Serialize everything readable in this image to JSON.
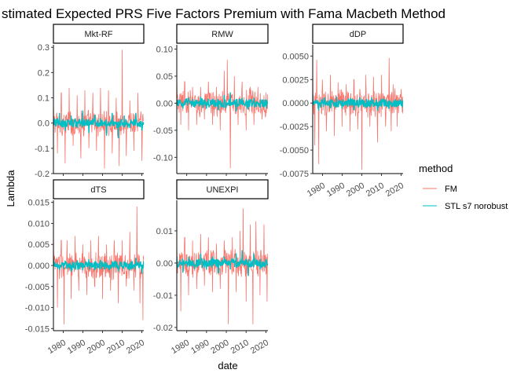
{
  "chart_data": {
    "type": "line",
    "title": "stimated Expected PRS Five Factors Premium with Fama Macbeth Method",
    "xlabel": "date",
    "ylabel": "Lambda",
    "x_range": [
      1975,
      2021
    ],
    "x_ticks": [
      1980,
      1990,
      2000,
      2010,
      2020
    ],
    "grid": false,
    "legend": {
      "title": "method",
      "placement": "right",
      "entries": [
        {
          "name": "FM",
          "color": "#F8766D"
        },
        {
          "name": "STL s7 norobust",
          "color": "#00BFC4"
        }
      ]
    },
    "series_names": [
      "FM",
      "STL s7 norobust"
    ],
    "panels": [
      {
        "name": "Mkt-RF",
        "ylim": [
          -0.2,
          0.31
        ],
        "y_ticks": [
          -0.2,
          -0.1,
          0.0,
          0.1,
          0.2,
          0.3
        ],
        "y_tick_labels": [
          "-0.2",
          "-0.1",
          "0.0",
          "0.1",
          "0.2",
          "0.3"
        ],
        "series": [
          {
            "name": "FM",
            "x": [
              1975,
              1977,
              1979,
              1981,
              1983,
              1985,
              1987,
              1989,
              1991,
              1993,
              1995,
              1997,
              1999,
              2001,
              2003,
              2005,
              2007,
              2008.5,
              2010,
              2012,
              2014,
              2016,
              2018,
              2020
            ],
            "y": [
              0.08,
              -0.12,
              0.12,
              -0.16,
              0.14,
              -0.09,
              0.11,
              -0.14,
              0.13,
              -0.1,
              0.12,
              -0.11,
              0.14,
              -0.18,
              0.13,
              -0.12,
              0.1,
              -0.17,
              0.29,
              -0.13,
              0.09,
              -0.11,
              0.12,
              -0.15
            ]
          },
          {
            "name": "STL s7 norobust",
            "x": [
              1975,
              1978,
              1981,
              1984,
              1987,
              1990,
              1993,
              1996,
              1999,
              2002,
              2005,
              2008,
              2011,
              2014,
              2017,
              2020
            ],
            "y": [
              0.02,
              0.04,
              -0.03,
              0.03,
              -0.02,
              0.05,
              -0.04,
              0.03,
              0.02,
              -0.05,
              0.04,
              -0.06,
              0.03,
              -0.02,
              0.04,
              -0.03
            ]
          }
        ]
      },
      {
        "name": "RMW",
        "ylim": [
          -0.13,
          0.108
        ],
        "y_ticks": [
          -0.1,
          -0.05,
          0.0,
          0.05,
          0.1
        ],
        "y_tick_labels": [
          "-0.10",
          "-0.05",
          "0.00",
          "0.05",
          "0.10"
        ],
        "series": [
          {
            "name": "FM",
            "x": [
              1975,
              1977,
              1979,
              1981,
              1983,
              1985,
              1987,
              1989,
              1991,
              1993,
              1995,
              1997,
              1999,
              2000.5,
              2002,
              2004,
              2006,
              2008,
              2010,
              2012,
              2014,
              2016,
              2018,
              2020
            ],
            "y": [
              0.05,
              -0.04,
              0.04,
              -0.05,
              0.03,
              -0.04,
              0.03,
              -0.03,
              0.04,
              -0.04,
              0.03,
              -0.05,
              0.06,
              0.08,
              -0.12,
              0.05,
              -0.04,
              0.04,
              -0.05,
              0.03,
              -0.04,
              0.03,
              -0.03,
              0.02
            ]
          },
          {
            "name": "STL s7 norobust",
            "x": [
              1975,
              1978,
              1981,
              1984,
              1987,
              1990,
              1993,
              1996,
              1999,
              2002,
              2005,
              2008,
              2011,
              2014,
              2017,
              2020
            ],
            "y": [
              0.005,
              -0.01,
              0.01,
              -0.008,
              0.012,
              -0.01,
              0.008,
              -0.012,
              0.015,
              0.02,
              -0.015,
              0.01,
              -0.012,
              0.01,
              -0.008,
              0.006
            ]
          }
        ]
      },
      {
        "name": "dDP",
        "ylim": [
          -0.0075,
          0.0062
        ],
        "y_ticks": [
          -0.0075,
          -0.005,
          -0.0025,
          0.0,
          0.0025,
          0.005
        ],
        "y_tick_labels": [
          "-0.0075",
          "-0.0050",
          "-0.0025",
          "0.0000",
          "0.0025",
          "0.0050"
        ],
        "series": [
          {
            "name": "FM",
            "x": [
              1975,
              1976,
              1977,
              1978,
              1980,
              1982,
              1984,
              1986,
              1988,
              1990,
              1992,
              1994,
              1996,
              1998,
              2000,
              2002,
              2004,
              2006,
              2008,
              2010,
              2012,
              2014,
              2015,
              2016,
              2018,
              2020
            ],
            "y": [
              0.0043,
              -0.0045,
              0.0046,
              -0.0065,
              0.0025,
              -0.003,
              0.003,
              -0.0035,
              0.0022,
              -0.0025,
              0.002,
              -0.003,
              0.0025,
              -0.0028,
              -0.0071,
              0.003,
              -0.0025,
              0.0028,
              -0.0042,
              0.003,
              -0.0025,
              0.0048,
              -0.003,
              0.002,
              -0.0025,
              0.0015
            ]
          },
          {
            "name": "STL s7 norobust",
            "x": [
              1975,
              1978,
              1981,
              1984,
              1987,
              1990,
              1993,
              1996,
              1999,
              2002,
              2005,
              2008,
              2011,
              2014,
              2017,
              2020
            ],
            "y": [
              0.001,
              -0.0008,
              0.0006,
              -0.0005,
              0.0007,
              -0.0006,
              0.0005,
              -0.0007,
              0.0006,
              -0.0005,
              0.0006,
              -0.0008,
              0.0005,
              -0.0006,
              0.0004,
              -0.0003
            ]
          }
        ]
      },
      {
        "name": "dTS",
        "ylim": [
          -0.0155,
          0.0155
        ],
        "y_ticks": [
          -0.015,
          -0.01,
          -0.005,
          0.0,
          0.005,
          0.01,
          0.015
        ],
        "y_tick_labels": [
          "-0.015",
          "-0.010",
          "-0.005",
          "0.000",
          "0.005",
          "0.010",
          "0.015"
        ],
        "series": [
          {
            "name": "FM",
            "x": [
              1975,
              1977,
              1979,
              1980.5,
              1982,
              1984,
              1986,
              1988,
              1990,
              1992,
              1994,
              1996,
              1998,
              2000,
              2002,
              2004,
              2006,
              2008,
              2010,
              2012,
              2014,
              2016,
              2017.5,
              2019,
              2020.5
            ],
            "y": [
              0.009,
              -0.01,
              0.006,
              -0.014,
              0.006,
              -0.008,
              0.007,
              -0.006,
              0.005,
              -0.007,
              0.006,
              -0.005,
              0.007,
              -0.008,
              0.005,
              -0.006,
              0.006,
              -0.009,
              0.006,
              -0.005,
              0.008,
              -0.006,
              0.014,
              -0.009,
              -0.013
            ]
          },
          {
            "name": "STL s7 norobust",
            "x": [
              1975,
              1978,
              1981,
              1984,
              1987,
              1990,
              1993,
              1996,
              1999,
              2002,
              2005,
              2008,
              2011,
              2014,
              2017,
              2020
            ],
            "y": [
              0.002,
              -0.001,
              0.001,
              -0.0015,
              0.001,
              -0.0012,
              0.0015,
              -0.001,
              0.0012,
              -0.0008,
              0.001,
              -0.0015,
              0.001,
              -0.0012,
              0.0018,
              -0.002
            ]
          }
        ]
      },
      {
        "name": "UNEXPI",
        "ylim": [
          -0.021,
          0.0195
        ],
        "y_ticks": [
          -0.02,
          -0.01,
          0.0,
          0.01
        ],
        "y_tick_labels": [
          "-0.02",
          "-0.01",
          "0.00",
          "0.01"
        ],
        "series": [
          {
            "name": "FM",
            "x": [
              1975,
              1977,
              1979,
              1981,
              1983,
              1985,
              1987,
              1989,
              1991,
              1993,
              1995,
              1997,
              1999,
              2001,
              2003,
              2005,
              2007,
              2008.5,
              2010,
              2012,
              2013.5,
              2015,
              2017,
              2019,
              2020.5
            ],
            "y": [
              0.006,
              -0.015,
              0.008,
              -0.01,
              0.007,
              -0.008,
              0.009,
              -0.007,
              0.008,
              -0.009,
              0.006,
              -0.008,
              0.007,
              -0.019,
              0.008,
              -0.009,
              0.01,
              0.017,
              -0.012,
              0.012,
              -0.019,
              0.013,
              -0.01,
              0.012,
              -0.012
            ]
          },
          {
            "name": "STL s7 norobust",
            "x": [
              1975,
              1978,
              1981,
              1984,
              1987,
              1990,
              1993,
              1996,
              1999,
              2002,
              2005,
              2008,
              2011,
              2014,
              2017,
              2020
            ],
            "y": [
              0.002,
              -0.003,
              0.002,
              -0.002,
              0.003,
              -0.002,
              0.002,
              -0.003,
              0.002,
              -0.002,
              0.003,
              0.004,
              -0.004,
              0.003,
              -0.002,
              0.001
            ]
          }
        ]
      }
    ]
  }
}
